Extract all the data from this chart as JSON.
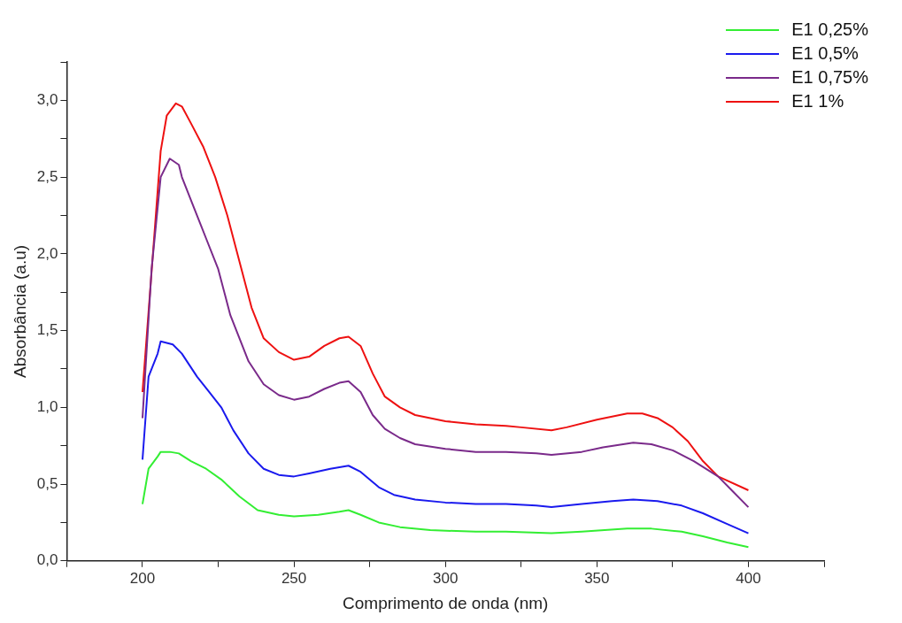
{
  "chart_data": {
    "type": "line",
    "xlabel": "Comprimento de onda (nm)",
    "ylabel": "Absorbância (a.u)",
    "xlim": [
      175,
      425
    ],
    "ylim": [
      0,
      3.25
    ],
    "xticks": [
      {
        "value": 175,
        "label": null
      },
      200,
      {
        "value": 225,
        "label": null
      },
      250,
      {
        "value": 275,
        "label": null
      },
      300,
      {
        "value": 325,
        "label": null
      },
      350,
      {
        "value": 375,
        "label": null
      },
      400,
      {
        "value": 425,
        "label": null
      }
    ],
    "yticks": [
      {
        "value": 0,
        "label": "0,0"
      },
      {
        "value": 0.25,
        "label": null
      },
      {
        "value": 0.5,
        "label": "0,5"
      },
      {
        "value": 0.75,
        "label": null
      },
      {
        "value": 1,
        "label": "1,0"
      },
      {
        "value": 1.25,
        "label": null
      },
      {
        "value": 1.5,
        "label": "1,5"
      },
      {
        "value": 1.75,
        "label": null
      },
      {
        "value": 2,
        "label": "2,0"
      },
      {
        "value": 2.25,
        "label": null
      },
      {
        "value": 2.5,
        "label": "2,5"
      },
      {
        "value": 2.75,
        "label": null
      },
      {
        "value": 3,
        "label": "3,0"
      },
      {
        "value": 3.25,
        "label": null
      }
    ],
    "grid": false,
    "legend": "top right",
    "marker": "none",
    "line_style": "solid",
    "series": [
      {
        "name": "E1 0,25%",
        "color": "#33ee33",
        "x": [
          200,
          202,
          205,
          206,
          209,
          212,
          216,
          221,
          226,
          232,
          238,
          245,
          250,
          258,
          265,
          268,
          272,
          278,
          285,
          295,
          310,
          320,
          335,
          345,
          360,
          368,
          378,
          385,
          393,
          400
        ],
        "values": [
          0.37,
          0.6,
          0.68,
          0.71,
          0.71,
          0.7,
          0.65,
          0.6,
          0.53,
          0.42,
          0.33,
          0.3,
          0.29,
          0.3,
          0.32,
          0.33,
          0.3,
          0.25,
          0.22,
          0.2,
          0.19,
          0.19,
          0.18,
          0.19,
          0.21,
          0.21,
          0.19,
          0.16,
          0.12,
          0.09
        ]
      },
      {
        "name": "E1 0,5%",
        "color": "#1a1aee",
        "x": [
          200,
          202,
          205,
          206,
          210,
          213,
          218,
          222,
          226,
          230,
          235,
          240,
          245,
          250,
          255,
          262,
          268,
          272,
          278,
          283,
          290,
          300,
          310,
          320,
          330,
          335,
          345,
          355,
          362,
          370,
          378,
          385,
          393,
          400
        ],
        "values": [
          0.66,
          1.2,
          1.35,
          1.43,
          1.41,
          1.35,
          1.2,
          1.1,
          1.0,
          0.85,
          0.7,
          0.6,
          0.56,
          0.55,
          0.57,
          0.6,
          0.62,
          0.58,
          0.48,
          0.43,
          0.4,
          0.38,
          0.37,
          0.37,
          0.36,
          0.35,
          0.37,
          0.39,
          0.4,
          0.39,
          0.36,
          0.31,
          0.24,
          0.18
        ]
      },
      {
        "name": "E1 0,75%",
        "color": "#7a2a8a",
        "x": [
          200,
          203,
          206,
          209,
          212,
          213,
          217,
          221,
          225,
          229,
          235,
          240,
          245,
          250,
          255,
          260,
          265,
          268,
          272,
          276,
          280,
          285,
          290,
          300,
          310,
          320,
          330,
          335,
          345,
          352,
          362,
          368,
          375,
          382,
          390,
          395,
          400
        ],
        "values": [
          0.93,
          1.9,
          2.5,
          2.62,
          2.58,
          2.5,
          2.3,
          2.1,
          1.9,
          1.6,
          1.3,
          1.15,
          1.08,
          1.05,
          1.07,
          1.12,
          1.16,
          1.17,
          1.1,
          0.95,
          0.86,
          0.8,
          0.76,
          0.73,
          0.71,
          0.71,
          0.7,
          0.69,
          0.71,
          0.74,
          0.77,
          0.76,
          0.72,
          0.65,
          0.55,
          0.45,
          0.35
        ]
      },
      {
        "name": "E1 1%",
        "color": "#ee1111",
        "x": [
          200,
          206,
          208,
          211,
          213,
          216,
          220,
          224,
          228,
          232,
          236,
          240,
          245,
          250,
          255,
          260,
          265,
          268,
          272,
          276,
          280,
          285,
          290,
          300,
          310,
          320,
          325,
          335,
          340,
          350,
          360,
          365,
          370,
          375,
          380,
          385,
          390,
          400
        ],
        "values": [
          1.1,
          2.67,
          2.9,
          2.98,
          2.96,
          2.85,
          2.7,
          2.5,
          2.25,
          1.95,
          1.65,
          1.45,
          1.36,
          1.31,
          1.33,
          1.4,
          1.45,
          1.46,
          1.4,
          1.22,
          1.07,
          1.0,
          0.95,
          0.91,
          0.89,
          0.88,
          0.87,
          0.85,
          0.87,
          0.92,
          0.96,
          0.96,
          0.93,
          0.87,
          0.78,
          0.65,
          0.55,
          0.46
        ]
      }
    ]
  }
}
